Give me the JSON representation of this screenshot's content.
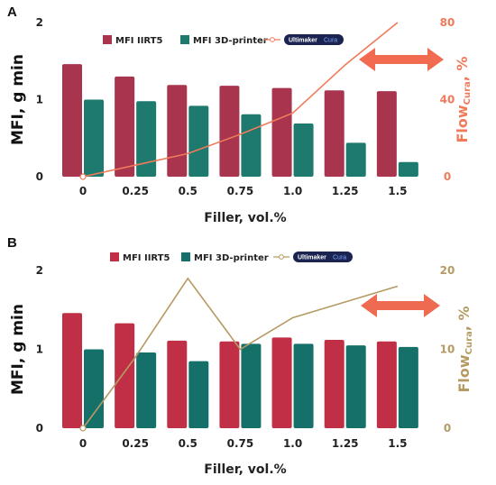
{
  "chart_data": [
    {
      "type": "bar",
      "panel_label": "A",
      "categories": [
        "0",
        "0.25",
        "0.5",
        "0.75",
        "1.0",
        "1.25",
        "1.5"
      ],
      "xlabel": "Filler, vol.%",
      "ylabel": "MFI, g min",
      "y2label": "Flow",
      "y2label_sub": "Cura",
      "y2label_suffix": ", %",
      "ylim": [
        0,
        2
      ],
      "yticks": [
        "0",
        "1",
        "2"
      ],
      "y2lim": [
        0,
        80
      ],
      "y2ticks": [
        "0",
        "40",
        "80"
      ],
      "series": [
        {
          "name": "MFI IIRT5",
          "values": [
            1.46,
            1.3,
            1.19,
            1.18,
            1.15,
            1.12,
            1.11
          ],
          "color": "#a8344e"
        },
        {
          "name": "MFI 3D-printer",
          "values": [
            1.0,
            0.98,
            0.92,
            0.81,
            0.69,
            0.44,
            0.19
          ],
          "color": "#1e7a6e"
        }
      ],
      "line": {
        "name": "Cura",
        "badge": "Ultimaker",
        "values": [
          0,
          6,
          12,
          22,
          33,
          58,
          80
        ],
        "color": "#f07a5a"
      },
      "arrow_color": "#f26a4f",
      "legend": "top"
    },
    {
      "type": "bar",
      "panel_label": "B",
      "categories": [
        "0",
        "0.25",
        "0.5",
        "0.75",
        "1.0",
        "1.25",
        "1.5"
      ],
      "xlabel": "Filler, vol.%",
      "ylabel": "MFI, g min",
      "y2label": "Flow",
      "y2label_sub": "Cura",
      "y2label_suffix": ", %",
      "ylim": [
        0,
        2
      ],
      "yticks": [
        "0",
        "1",
        "2"
      ],
      "y2lim": [
        0,
        20
      ],
      "y2ticks": [
        "0",
        "10",
        "20"
      ],
      "series": [
        {
          "name": "MFI IIRT5",
          "values": [
            1.46,
            1.33,
            1.11,
            1.1,
            1.15,
            1.12,
            1.1
          ],
          "color": "#c02f45"
        },
        {
          "name": "MFI 3D-printer",
          "values": [
            1.0,
            0.96,
            0.85,
            1.07,
            1.07,
            1.05,
            1.03
          ],
          "color": "#16706a"
        }
      ],
      "line": {
        "name": "Cura",
        "badge": "Ultimaker",
        "values": [
          0,
          9,
          19,
          10,
          14,
          16,
          18
        ],
        "color": "#b59a62"
      },
      "arrow_color": "#ee6a50",
      "legend": "top"
    }
  ]
}
